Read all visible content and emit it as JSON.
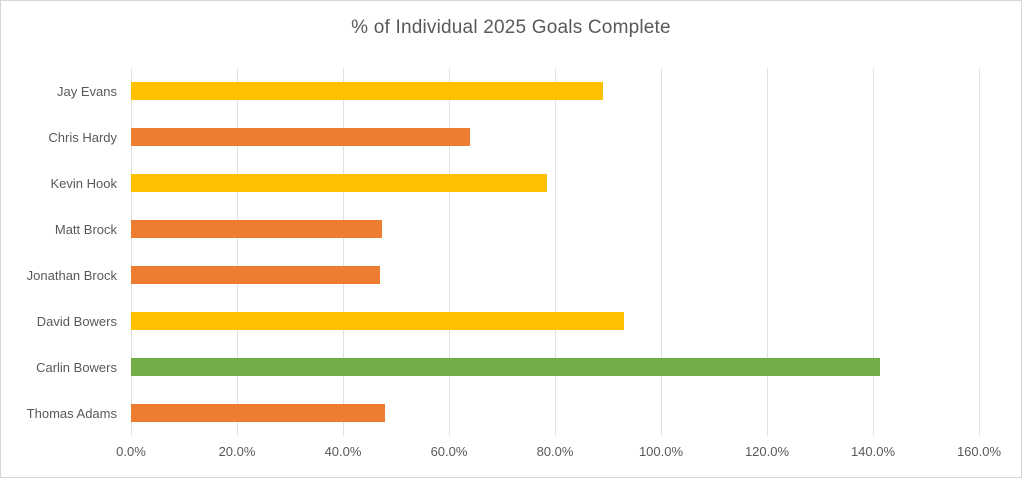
{
  "chart": {
    "border_color": "#d6d6d6",
    "background_color": "#ffffff",
    "text_color": "#595959",
    "gridline_color": "#e2e2e2"
  },
  "chart_data": {
    "type": "bar",
    "orientation": "horizontal",
    "title": "% of Individual 2025 Goals Complete",
    "xlabel": "",
    "ylabel": "",
    "categories": [
      "Jay Evans",
      "Chris Hardy",
      "Kevin Hook",
      "Matt Brock",
      "Jonathan Brock",
      "David Bowers",
      "Carlin Bowers",
      "Thomas Adams"
    ],
    "values": [
      89.0,
      64.0,
      78.5,
      47.3,
      47.0,
      93.0,
      141.3,
      48.0
    ],
    "value_unit": "%",
    "bar_colors": [
      "#FFC000",
      "#ED7D31",
      "#FFC000",
      "#ED7D31",
      "#ED7D31",
      "#FFC000",
      "#70AD47",
      "#ED7D31"
    ],
    "xlim": [
      0,
      160
    ],
    "x_tick_labels": [
      "0.0%",
      "20.0%",
      "40.0%",
      "60.0%",
      "80.0%",
      "100.0%",
      "120.0%",
      "140.0%",
      "160.0%"
    ],
    "x_tick_values": [
      0,
      20,
      40,
      60,
      80,
      100,
      120,
      140,
      160
    ],
    "grid": "vertical-gridlines-on",
    "legend": "none"
  }
}
